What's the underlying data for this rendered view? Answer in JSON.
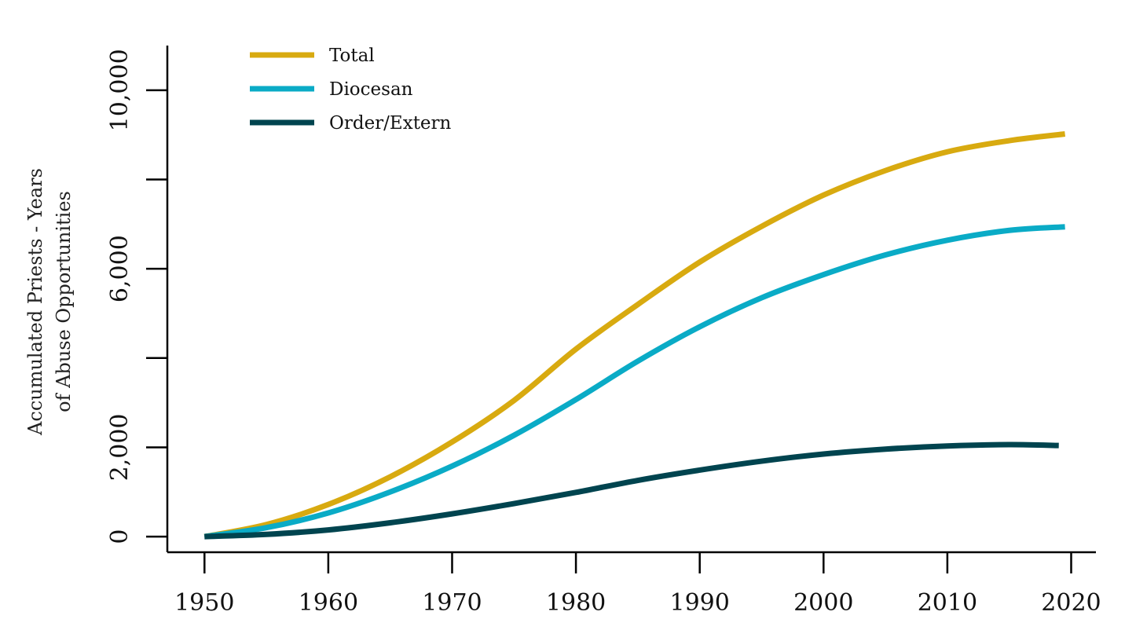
{
  "chart_data": {
    "type": "line",
    "title": "",
    "xlabel": "",
    "ylabel_lines": [
      "Accumulated Priests - Years",
      "of Abuse Opportunities"
    ],
    "xlim": [
      1947,
      2022
    ],
    "ylim": [
      -350,
      11000
    ],
    "x_ticks": [
      1950,
      1960,
      1970,
      1980,
      1990,
      2000,
      2010,
      2020
    ],
    "x_tick_labels": [
      "1950",
      "1960",
      "1970",
      "1980",
      "1990",
      "2000",
      "2010",
      "2020"
    ],
    "y_ticks": [
      0,
      2000,
      4000,
      6000,
      8000,
      10000
    ],
    "y_tick_labels": [
      "0",
      "2,000",
      "",
      "6,000",
      "",
      "10,000"
    ],
    "grid": false,
    "legend_position": "top-left",
    "series": [
      {
        "name": "Total",
        "color": "#D8AA10",
        "x": [
          1950,
          1955,
          1960,
          1965,
          1970,
          1975,
          1980,
          1985,
          1990,
          1995,
          2000,
          2005,
          2010,
          2015,
          2019.5
        ],
        "y": [
          0,
          270,
          720,
          1340,
          2120,
          3050,
          4200,
          5200,
          6150,
          6950,
          7650,
          8200,
          8620,
          8870,
          9020
        ]
      },
      {
        "name": "Diocesan",
        "color": "#0AABC6",
        "x": [
          1950,
          1955,
          1960,
          1965,
          1970,
          1975,
          1980,
          1985,
          1990,
          1995,
          2000,
          2005,
          2010,
          2015,
          2019.5
        ],
        "y": [
          0,
          200,
          530,
          1000,
          1580,
          2270,
          3070,
          3930,
          4700,
          5350,
          5870,
          6310,
          6640,
          6860,
          6940
        ]
      },
      {
        "name": "Order/Extern",
        "color": "#00444F",
        "x": [
          1950,
          1955,
          1960,
          1965,
          1970,
          1975,
          1980,
          1985,
          1990,
          1995,
          2000,
          2005,
          2010,
          2015,
          2019
        ],
        "y": [
          0,
          50,
          150,
          310,
          510,
          740,
          990,
          1260,
          1490,
          1690,
          1850,
          1960,
          2030,
          2060,
          2040
        ]
      }
    ]
  }
}
